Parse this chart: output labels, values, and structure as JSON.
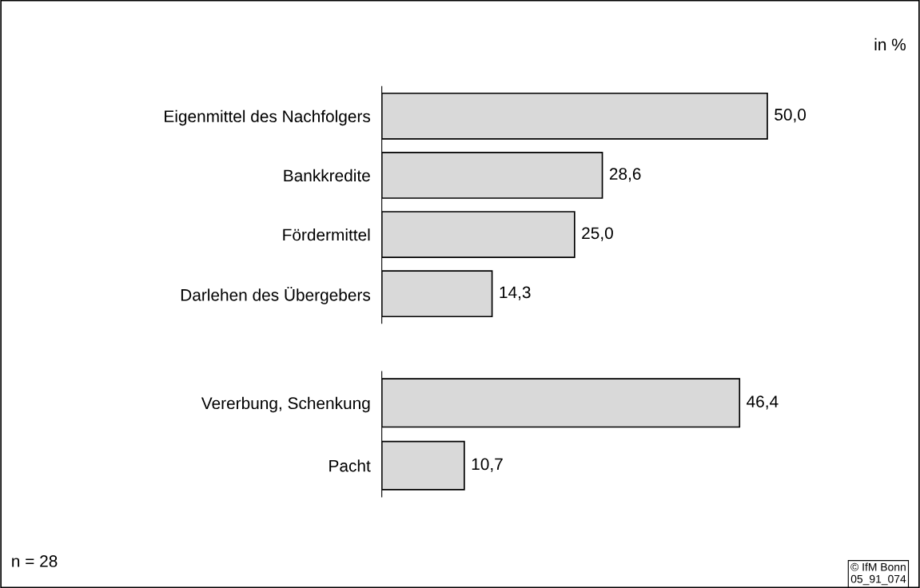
{
  "chart_data": [
    {
      "type": "bar",
      "orientation": "horizontal",
      "categories": [
        "Eigenmittel des Nachfolgers",
        "Bankkredite",
        "Fördermittel",
        "Darlehen des Übergebers"
      ],
      "values": [
        50.0,
        28.6,
        25.0,
        14.3
      ],
      "value_labels": [
        "50,0",
        "28,6",
        "25,0",
        "14,3"
      ],
      "color": "#d9d9d9",
      "tick_labels": "y",
      "grid": false,
      "legend": false,
      "annotations": [
        "in %"
      ]
    },
    {
      "type": "bar",
      "orientation": "horizontal",
      "categories": [
        "Vererbung, Schenkung",
        "Pacht"
      ],
      "values": [
        46.4,
        10.7
      ],
      "value_labels": [
        "46,4",
        "10,7"
      ],
      "color": "#d9d9d9",
      "tick_labels": "y",
      "grid": false,
      "legend": false,
      "annotations": [
        "n = 28",
        "© IfM Bonn\n05_91_074"
      ]
    }
  ]
}
